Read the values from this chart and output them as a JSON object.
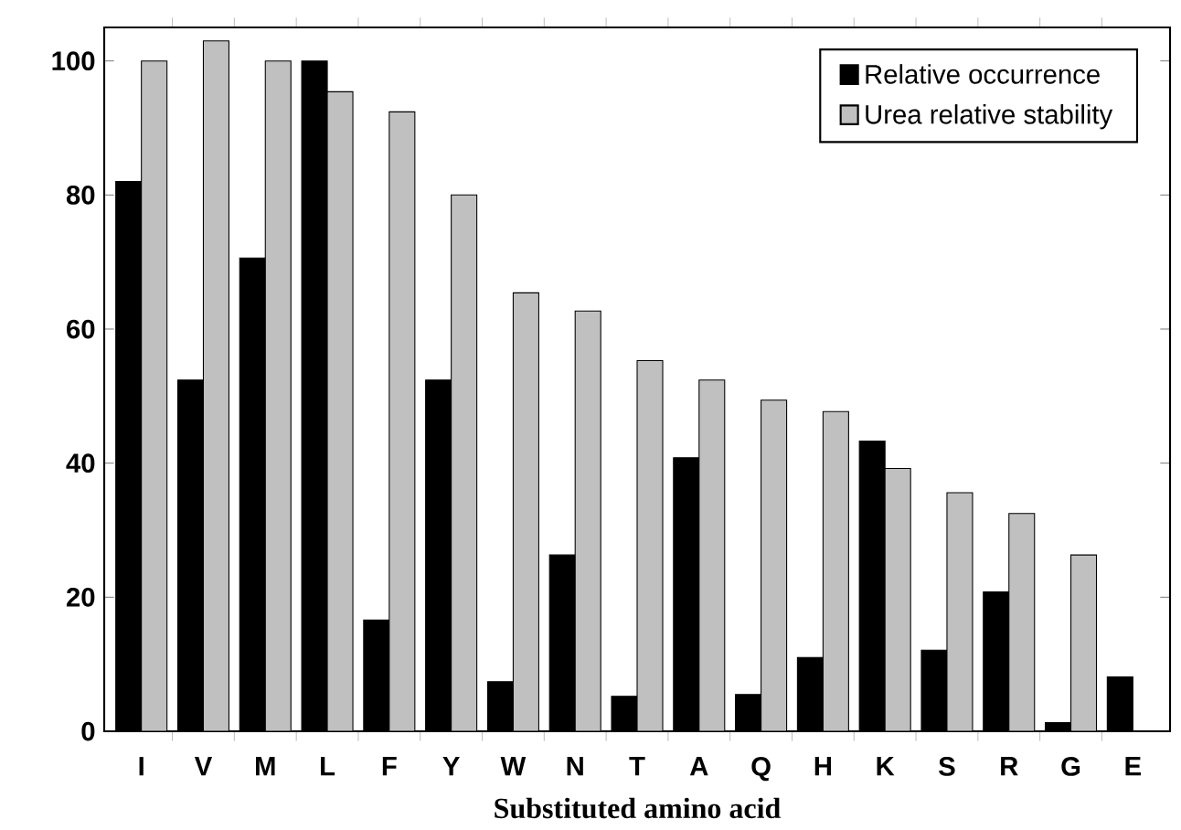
{
  "chart_data": {
    "type": "bar",
    "xlabel": "Substituted amino acid",
    "categories": [
      "I",
      "V",
      "M",
      "L",
      "F",
      "Y",
      "W",
      "N",
      "T",
      "A",
      "Q",
      "H",
      "K",
      "S",
      "R",
      "G",
      "E"
    ],
    "series": [
      {
        "name": "Relative occurrence",
        "color": "#000000",
        "values": [
          82,
          52.4,
          70.6,
          100,
          16.6,
          52.4,
          7.4,
          26.3,
          5.2,
          40.8,
          5.5,
          11,
          43.3,
          12.1,
          20.8,
          1.3,
          8.1
        ]
      },
      {
        "name": "Urea relative stability",
        "color": "#c0c0c0",
        "values": [
          100,
          103,
          100,
          95.4,
          92.4,
          80,
          65.4,
          62.7,
          55.3,
          52.4,
          49.4,
          47.7,
          39.2,
          35.6,
          32.5,
          26.3,
          null
        ]
      }
    ],
    "ylim": [
      0,
      105
    ],
    "yticks": [
      0,
      20,
      40,
      60,
      80,
      100
    ],
    "grid": false,
    "legend": "top right"
  }
}
